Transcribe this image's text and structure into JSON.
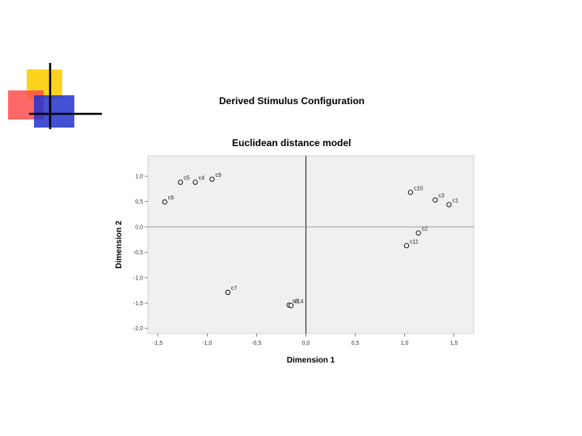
{
  "slide": {
    "title": "Derived Stimulus Configuration",
    "subtitle": "Euclidean distance model"
  },
  "colors": {
    "deco_yellow": "#ffd21e",
    "deco_red": "#ff4d4d",
    "deco_blue": "#2233cc",
    "plot_bg": "#f0f0f0",
    "marker": "#000000"
  },
  "chart_data": {
    "type": "scatter",
    "title": "Euclidean distance model",
    "xlabel": "Dimension 1",
    "ylabel": "Dimension 2",
    "xlim": [
      -1.6,
      1.7
    ],
    "ylim": [
      -2.1,
      1.4
    ],
    "x_ticks": [
      -1.5,
      -1.0,
      -0.5,
      0.0,
      0.5,
      1.0,
      1.5
    ],
    "x_tick_labels": [
      "-1,5",
      "-1,0",
      "-0,5",
      "0,0",
      "0,5",
      "1,0",
      "1,5"
    ],
    "y_ticks": [
      1.0,
      0.5,
      0.0,
      -0.5,
      -1.0,
      -1.5,
      -2.0
    ],
    "y_tick_labels": [
      "1,0",
      "0,5",
      "0,0",
      "-0,5",
      "-1,0",
      "-1,5",
      "-2,0"
    ],
    "reference_lines": {
      "x": 0.0,
      "y": 0.0
    },
    "points": [
      {
        "label": "c1",
        "x": 1.45,
        "y": 0.44
      },
      {
        "label": "c2",
        "x": 1.14,
        "y": -0.12
      },
      {
        "label": "c3",
        "x": 1.31,
        "y": 0.53
      },
      {
        "label": "c4",
        "x": -1.12,
        "y": 0.88
      },
      {
        "label": "c5",
        "x": -1.27,
        "y": 0.88
      },
      {
        "label": "c6",
        "x": -1.43,
        "y": 0.49
      },
      {
        "label": "c7",
        "x": -0.79,
        "y": -1.29
      },
      {
        "label": "c8",
        "x": -0.17,
        "y": -1.54
      },
      {
        "label": "c9",
        "x": -0.95,
        "y": 0.94
      },
      {
        "label": "c10",
        "x": 1.06,
        "y": 0.68
      },
      {
        "label": "c11",
        "x": 1.02,
        "y": -0.37
      },
      {
        "label": "c14",
        "x": -0.15,
        "y": -1.55
      }
    ]
  }
}
